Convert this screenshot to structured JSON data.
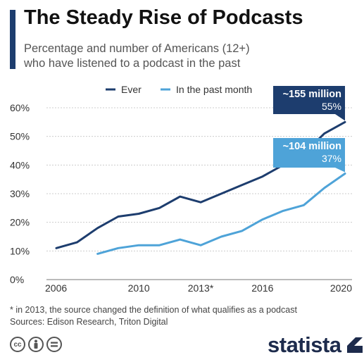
{
  "title": "The Steady Rise of Podcasts",
  "subtitle_lines": [
    "Percentage and number of Americans (12+)",
    "who have listened to a podcast in the past"
  ],
  "footnote": "* in 2013, the source changed the definition of what qualifies as a podcast",
  "sources": "Sources: Edison Research, Triton Digital",
  "brand": "statista",
  "license_icons": [
    "creative-commons-icon",
    "attribution-icon",
    "no-derivatives-icon"
  ],
  "colors": {
    "ever": "#1d3d6e",
    "past_month": "#4ea3d8",
    "accent": "#1d3d6e",
    "grid": "#cccccc"
  },
  "chart_data": {
    "type": "line",
    "x": [
      2006,
      2007,
      2008,
      2009,
      2010,
      2011,
      2012,
      2013,
      2014,
      2015,
      2016,
      2017,
      2018,
      2019,
      2020
    ],
    "x_ticks": [
      "2006",
      "2010",
      "2013*",
      "2016",
      "2020"
    ],
    "x_tick_values": [
      2006,
      2010,
      2013,
      2016,
      2020
    ],
    "xlim": [
      2006,
      2020
    ],
    "ylim": [
      0,
      60
    ],
    "y_ticks": [
      "0%",
      "10%",
      "20%",
      "30%",
      "40%",
      "50%",
      "60%"
    ],
    "y_tick_values": [
      0,
      10,
      20,
      30,
      40,
      50,
      60
    ],
    "grid": "horizontal",
    "legend_position": "top",
    "series": [
      {
        "name": "Ever",
        "color": "#1d3d6e",
        "values": [
          11,
          13,
          18,
          22,
          23,
          25,
          29,
          27,
          30,
          33,
          36,
          40,
          44,
          51,
          55
        ]
      },
      {
        "name": "In the past month",
        "color": "#4ea3d8",
        "values": [
          null,
          null,
          9,
          11,
          12,
          12,
          14,
          12,
          15,
          17,
          21,
          24,
          26,
          32,
          37
        ]
      }
    ],
    "annotations": [
      {
        "series": "Ever",
        "x": 2020,
        "line1": "~155 million",
        "line2": "55%",
        "color": "#1d3d6e"
      },
      {
        "series": "In the past month",
        "x": 2020,
        "line1": "~104 million",
        "line2": "37%",
        "color": "#4ea3d8"
      }
    ]
  }
}
